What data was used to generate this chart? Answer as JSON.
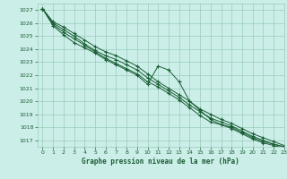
{
  "title": "Graphe pression niveau de la mer (hPa)",
  "xlim": [
    -0.5,
    23
  ],
  "ylim": [
    1016.5,
    1027.5
  ],
  "yticks": [
    1017,
    1018,
    1019,
    1020,
    1021,
    1022,
    1023,
    1024,
    1025,
    1026,
    1027
  ],
  "xticks": [
    0,
    1,
    2,
    3,
    4,
    5,
    6,
    7,
    8,
    9,
    10,
    11,
    12,
    13,
    14,
    15,
    16,
    17,
    18,
    19,
    20,
    21,
    22,
    23
  ],
  "background_color": "#cceee8",
  "grid_color": "#99ccbb",
  "line_color": "#1a5e35",
  "marker": "+",
  "series": [
    [
      1027.1,
      1026.1,
      1025.7,
      1025.2,
      1024.7,
      1024.2,
      1023.8,
      1023.5,
      1023.1,
      1022.7,
      1022.1,
      1021.5,
      1021.0,
      1020.5,
      1020.0,
      1019.4,
      1019.0,
      1018.6,
      1018.3,
      1017.9,
      1017.5,
      1017.2,
      1016.9,
      1016.6
    ],
    [
      1027.1,
      1026.0,
      1025.5,
      1025.0,
      1024.4,
      1023.9,
      1023.5,
      1023.2,
      1022.8,
      1022.4,
      1021.8,
      1021.3,
      1020.8,
      1020.3,
      1019.7,
      1019.2,
      1018.7,
      1018.4,
      1018.1,
      1017.7,
      1017.3,
      1017.0,
      1016.7,
      1016.5
    ],
    [
      1027.1,
      1025.9,
      1025.3,
      1024.8,
      1024.3,
      1023.8,
      1023.3,
      1022.9,
      1022.5,
      1022.1,
      1021.5,
      1021.1,
      1020.6,
      1020.1,
      1019.5,
      1018.9,
      1018.4,
      1018.2,
      1018.0,
      1017.6,
      1017.2,
      1016.9,
      1016.7,
      1016.5
    ],
    [
      1027.1,
      1025.8,
      1025.1,
      1024.5,
      1024.1,
      1023.7,
      1023.2,
      1022.8,
      1022.4,
      1022.0,
      1021.3,
      1022.7,
      1022.4,
      1021.5,
      1020.0,
      1019.3,
      1018.6,
      1018.2,
      1017.9,
      1017.5,
      1017.1,
      1016.8,
      1016.6,
      1016.4
    ]
  ]
}
